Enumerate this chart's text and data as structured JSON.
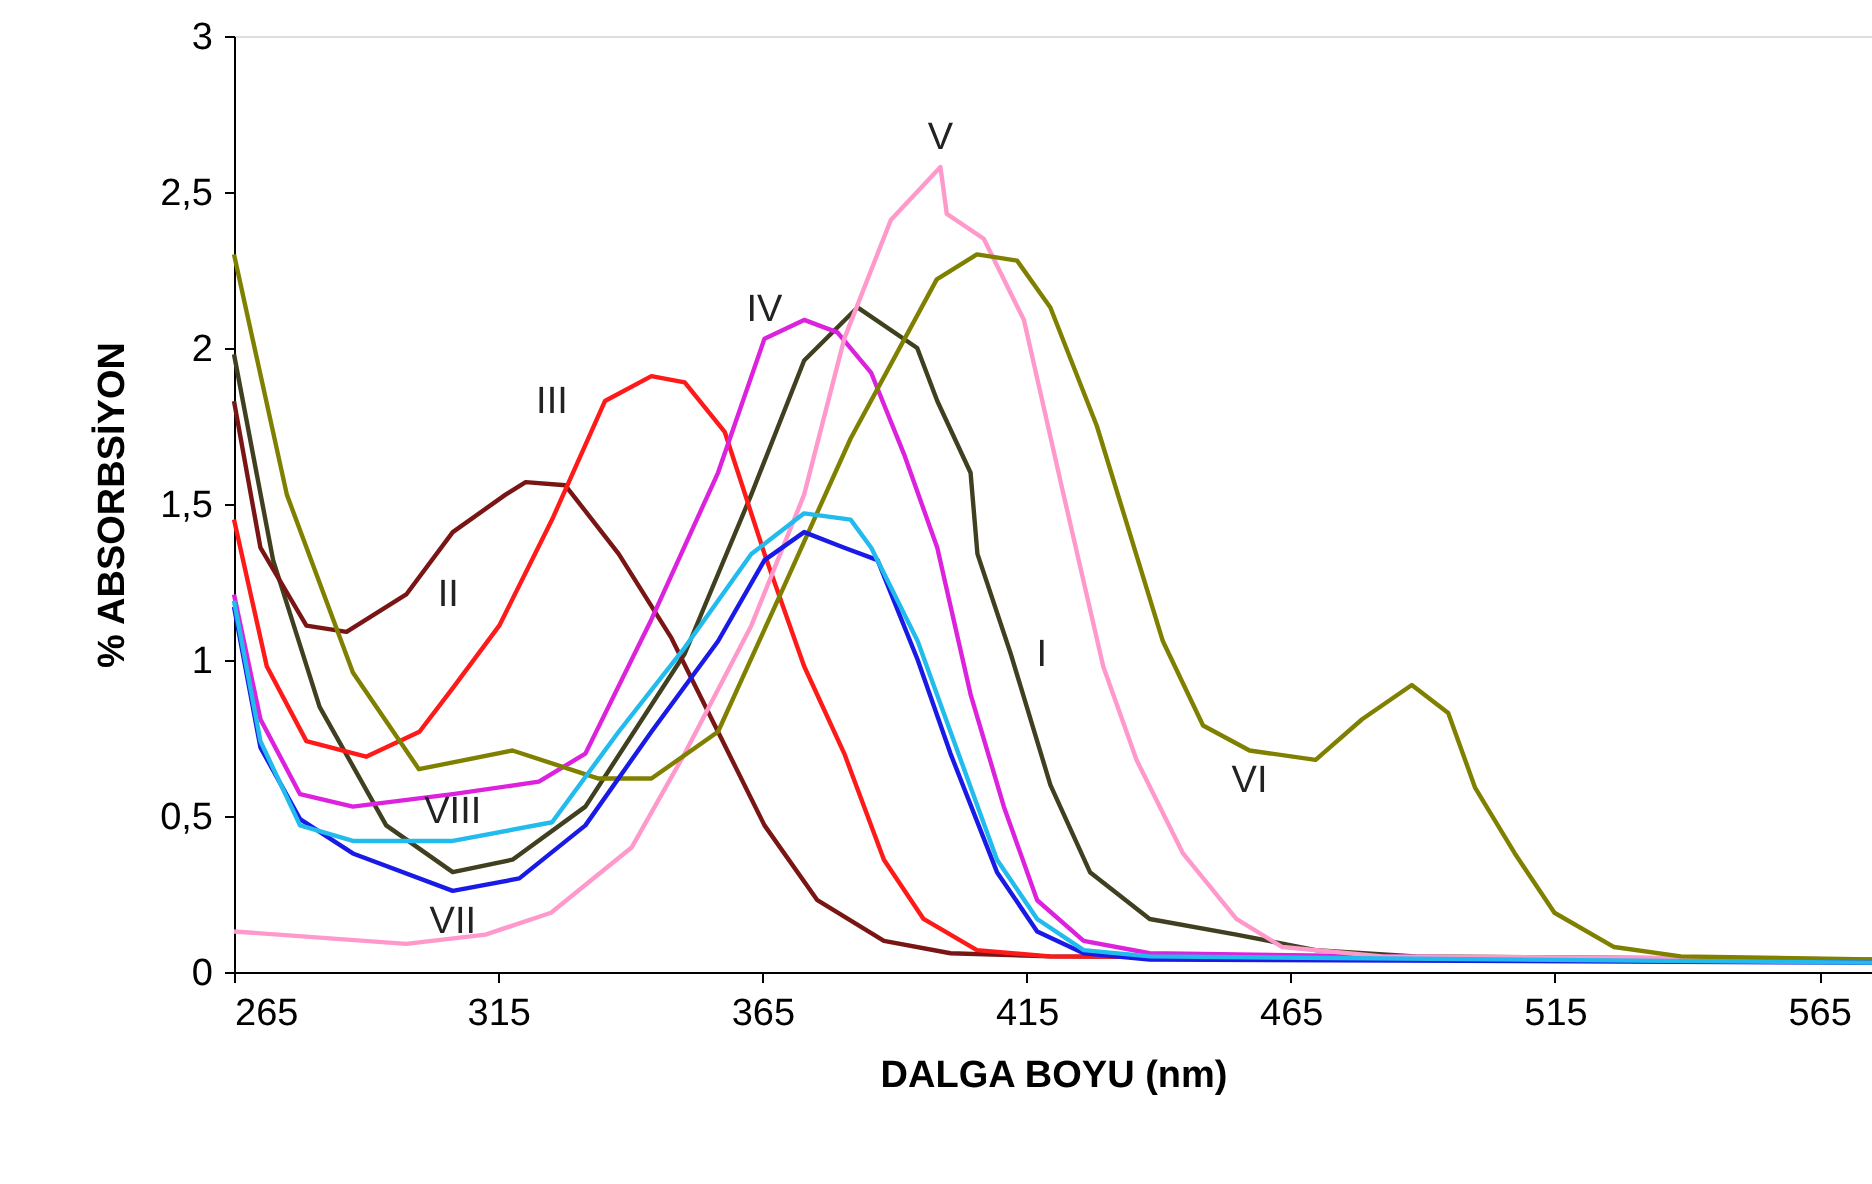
{
  "chart_data": {
    "type": "line",
    "xlabel": "DALGA BOYU (nm)",
    "ylabel": "% ABSORBSİYON",
    "xlim": [
      265,
      575
    ],
    "xticks": [
      265,
      315,
      365,
      415,
      465,
      515,
      565
    ],
    "ylim": [
      0,
      3
    ],
    "yticks": [
      0,
      {
        "value": 0.5,
        "label": "0,5"
      },
      1,
      {
        "value": 1.5,
        "label": "1,5"
      },
      2,
      {
        "value": 2.5,
        "label": "2,5"
      },
      3
    ],
    "grid": false,
    "marker": "none",
    "line_style": "solid",
    "series": [
      {
        "color": "#404020",
        "x": [
          265,
          272.4,
          281.2,
          293.8,
          306.4,
          317.7,
          331.5,
          350.3,
          362.9,
          372.9,
          383,
          394.3,
          398.1,
          404.4,
          405.7,
          412,
          419.5,
          427,
          438.3,
          454.7,
          469.7,
          488.6,
          575
        ],
        "values": [
          1.98,
          1.32,
          0.85,
          0.47,
          0.32,
          0.36,
          0.53,
          1.02,
          1.53,
          1.96,
          2.13,
          2.0,
          1.83,
          1.6,
          1.34,
          1.02,
          0.6,
          0.32,
          0.17,
          0.12,
          0.07,
          0.05,
          0.04
        ]
      },
      {
        "color": "#7a1515",
        "x": [
          265,
          270,
          278.7,
          286.3,
          297.6,
          306.4,
          316.4,
          320.2,
          327.7,
          337.8,
          347.8,
          356.6,
          365.4,
          375.4,
          388,
          400.6,
          419.4,
          575
        ],
        "values": [
          1.83,
          1.36,
          1.11,
          1.09,
          1.21,
          1.41,
          1.53,
          1.57,
          1.56,
          1.34,
          1.07,
          0.77,
          0.47,
          0.23,
          0.1,
          0.06,
          0.05,
          0.04
        ]
      },
      {
        "color": "#ff1a1a",
        "x": [
          265,
          271.2,
          278.7,
          290,
          300.1,
          306.4,
          315.2,
          325.2,
          335.2,
          344,
          350.3,
          357.9,
          365.4,
          372.9,
          380.5,
          388,
          395.5,
          405.6,
          419.4,
          575
        ],
        "values": [
          1.45,
          0.98,
          0.74,
          0.69,
          0.77,
          0.91,
          1.11,
          1.45,
          1.83,
          1.91,
          1.89,
          1.73,
          1.34,
          0.98,
          0.7,
          0.36,
          0.17,
          0.07,
          0.05,
          0.04
        ]
      },
      {
        "color": "#dd22dd",
        "x": [
          265,
          270,
          277.5,
          287.5,
          306.4,
          322.7,
          331.5,
          344,
          356.6,
          365.4,
          372.9,
          379.2,
          385.6,
          391.8,
          398.1,
          404.4,
          410.7,
          417,
          425.8,
          438.3,
          575
        ],
        "values": [
          1.21,
          0.81,
          0.57,
          0.53,
          0.57,
          0.61,
          0.7,
          1.13,
          1.6,
          2.03,
          2.09,
          2.05,
          1.92,
          1.66,
          1.36,
          0.89,
          0.53,
          0.23,
          0.1,
          0.06,
          0.03
        ]
      },
      {
        "color": "#ff99cc",
        "x": [
          265,
          297.6,
          312.6,
          325,
          340.3,
          350.3,
          362.9,
          372.9,
          380.5,
          389.3,
          398.7,
          399.9,
          406.9,
          414.5,
          422,
          429.5,
          435.8,
          444.6,
          454.7,
          463.4,
          482.3,
          575
        ],
        "values": [
          0.13,
          0.09,
          0.12,
          0.19,
          0.4,
          0.7,
          1.11,
          1.53,
          2.03,
          2.41,
          2.58,
          2.43,
          2.35,
          2.09,
          1.53,
          0.98,
          0.68,
          0.38,
          0.17,
          0.08,
          0.05,
          0.04
        ]
      },
      {
        "color": "#808000",
        "x": [
          265,
          275,
          287.5,
          300,
          317.7,
          334,
          344,
          356.6,
          369.2,
          381.7,
          398,
          405.6,
          413.2,
          419.5,
          428.3,
          440.8,
          448.4,
          457.2,
          469.7,
          478.5,
          487.9,
          494.8,
          499.9,
          507.4,
          514.9,
          526.2,
          538.8,
          575
        ],
        "values": [
          2.3,
          1.53,
          0.96,
          0.65,
          0.71,
          0.62,
          0.62,
          0.77,
          1.24,
          1.71,
          2.22,
          2.3,
          2.28,
          2.13,
          1.75,
          1.06,
          0.79,
          0.71,
          0.68,
          0.81,
          0.92,
          0.83,
          0.59,
          0.38,
          0.19,
          0.08,
          0.05,
          0.04
        ]
      },
      {
        "color": "#1a1ae6",
        "x": [
          265,
          270,
          277.5,
          287.5,
          306.4,
          319,
          331.5,
          344,
          356.6,
          365.4,
          372.9,
          380.5,
          386.8,
          394.4,
          400.6,
          409.4,
          417,
          425.8,
          438.3,
          575
        ],
        "values": [
          1.17,
          0.72,
          0.49,
          0.38,
          0.26,
          0.3,
          0.47,
          0.77,
          1.06,
          1.32,
          1.41,
          1.36,
          1.32,
          1.0,
          0.7,
          0.32,
          0.13,
          0.06,
          0.04,
          0.03
        ]
      },
      {
        "color": "#22bbee",
        "x": [
          265,
          270,
          277.5,
          287.5,
          306.4,
          325.2,
          337.8,
          350.3,
          362.9,
          372.9,
          381.7,
          385.6,
          394.4,
          400.6,
          409.4,
          417,
          425.8,
          438.3,
          575
        ],
        "values": [
          1.19,
          0.74,
          0.47,
          0.42,
          0.42,
          0.48,
          0.77,
          1.04,
          1.34,
          1.47,
          1.45,
          1.36,
          1.06,
          0.77,
          0.36,
          0.17,
          0.07,
          0.05,
          0.03
        ]
      }
    ],
    "annotations": [
      {
        "text": "I",
        "x": 412,
        "y": 1.02
      },
      {
        "text": "II",
        "x": 297.6,
        "y": 1.21
      },
      {
        "text": "III",
        "x": 335.2,
        "y": 1.83
      },
      {
        "text": "IV",
        "x": 365.4,
        "y": 2.03
      },
      {
        "text": "V",
        "x": 398.7,
        "y": 2.58
      },
      {
        "text": "VI",
        "x": 457.2,
        "y": 0.71
      },
      {
        "text": "VII",
        "x": 306.4,
        "y": 0.26
      },
      {
        "text": "VIII",
        "x": 306.4,
        "y": 0.42
      }
    ]
  }
}
